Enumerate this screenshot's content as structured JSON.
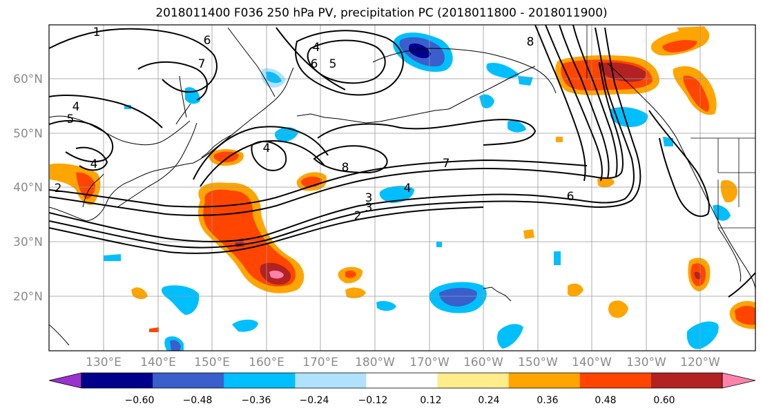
{
  "title": "2018011400 F036 250 hPa PV, precipitation PC (2018011800 - 2018011900)",
  "map": {
    "lat_labels": [
      "60°N",
      "50°N",
      "40°N",
      "30°N",
      "20°N"
    ],
    "lon_labels": [
      "130°E",
      "140°E",
      "150°E",
      "160°E",
      "170°E",
      "180°W",
      "170°W",
      "160°W",
      "150°W",
      "140°W",
      "130°W",
      "120°W"
    ],
    "contour_labels": [
      "1",
      "6",
      "4",
      "6",
      "5",
      "7",
      "4",
      "5",
      "4",
      "4",
      "8",
      "2",
      "3",
      "3",
      "2",
      "4",
      "7",
      "6",
      "8"
    ],
    "grid": true
  },
  "colorbar": {
    "ticks": [
      "−0.60",
      "−0.48",
      "−0.36",
      "−0.24",
      "−0.12",
      "0.12",
      "0.24",
      "0.36",
      "0.48",
      "0.60"
    ],
    "colors": [
      "#9a32cd",
      "#00008b",
      "#3a5fcd",
      "#00bfff",
      "#b0e2ff",
      "#ffffff",
      "#ffec8b",
      "#ffa500",
      "#ff4500",
      "#b22222",
      "#ff82ab"
    ]
  },
  "fill_colors": {
    "light_blue": "#b0e2ff",
    "blue": "#00bfff",
    "mid_blue": "#3a5fcd",
    "navy": "#00008b",
    "purple": "#9a32cd",
    "yellow": "#ffec8b",
    "orange": "#ffa500",
    "red": "#ff4500",
    "dark_red": "#b22222",
    "pink": "#ff82ab"
  }
}
